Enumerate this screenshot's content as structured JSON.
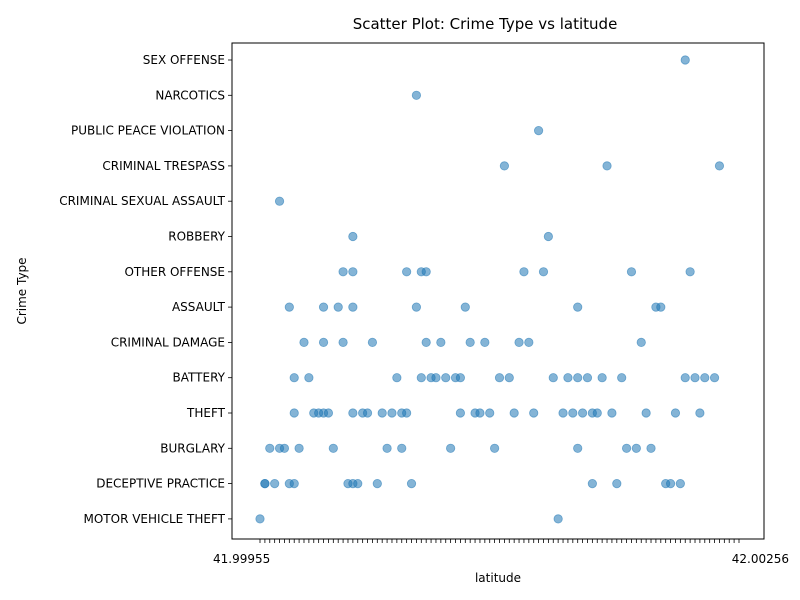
{
  "chart_data": {
    "type": "scatter",
    "title": "Scatter Plot: Crime Type vs latitude",
    "xlabel": "latitude",
    "ylabel": "Crime Type",
    "x_tick_text_left": "41.99955",
    "x_tick_text_right": "42.00256",
    "x_index_range": [
      0,
      98
    ],
    "categories": [
      "MOTOR VEHICLE THEFT",
      "DECEPTIVE PRACTICE",
      "BURGLARY",
      "THEFT",
      "BATTERY",
      "CRIMINAL DAMAGE",
      "ASSAULT",
      "OTHER OFFENSE",
      "ROBBERY",
      "CRIMINAL SEXUAL ASSAULT",
      "CRIMINAL TRESPASS",
      "PUBLIC PEACE VIOLATION",
      "NARCOTICS",
      "SEX OFFENSE"
    ],
    "marker_color": "#1f77b4",
    "marker_alpha": 0.55,
    "grid": false,
    "legend": "none",
    "points": [
      [
        0,
        "MOTOR VEHICLE THEFT"
      ],
      [
        1,
        "DECEPTIVE PRACTICE"
      ],
      [
        1,
        "DECEPTIVE PRACTICE"
      ],
      [
        2,
        "BURGLARY"
      ],
      [
        3,
        "DECEPTIVE PRACTICE"
      ],
      [
        4,
        "CRIMINAL SEXUAL ASSAULT"
      ],
      [
        4,
        "BURGLARY"
      ],
      [
        5,
        "BURGLARY"
      ],
      [
        6,
        "ASSAULT"
      ],
      [
        6,
        "DECEPTIVE PRACTICE"
      ],
      [
        7,
        "BATTERY"
      ],
      [
        7,
        "THEFT"
      ],
      [
        7,
        "DECEPTIVE PRACTICE"
      ],
      [
        8,
        "BURGLARY"
      ],
      [
        9,
        "CRIMINAL DAMAGE"
      ],
      [
        10,
        "BATTERY"
      ],
      [
        11,
        "THEFT"
      ],
      [
        12,
        "THEFT"
      ],
      [
        13,
        "ASSAULT"
      ],
      [
        13,
        "CRIMINAL DAMAGE"
      ],
      [
        13,
        "THEFT"
      ],
      [
        14,
        "THEFT"
      ],
      [
        15,
        "BURGLARY"
      ],
      [
        16,
        "ASSAULT"
      ],
      [
        17,
        "OTHER OFFENSE"
      ],
      [
        17,
        "CRIMINAL DAMAGE"
      ],
      [
        18,
        "DECEPTIVE PRACTICE"
      ],
      [
        19,
        "ROBBERY"
      ],
      [
        19,
        "OTHER OFFENSE"
      ],
      [
        19,
        "ASSAULT"
      ],
      [
        19,
        "THEFT"
      ],
      [
        19,
        "DECEPTIVE PRACTICE"
      ],
      [
        20,
        "DECEPTIVE PRACTICE"
      ],
      [
        21,
        "THEFT"
      ],
      [
        22,
        "THEFT"
      ],
      [
        23,
        "CRIMINAL DAMAGE"
      ],
      [
        24,
        "DECEPTIVE PRACTICE"
      ],
      [
        25,
        "THEFT"
      ],
      [
        26,
        "BURGLARY"
      ],
      [
        27,
        "THEFT"
      ],
      [
        28,
        "BATTERY"
      ],
      [
        29,
        "THEFT"
      ],
      [
        29,
        "BURGLARY"
      ],
      [
        30,
        "OTHER OFFENSE"
      ],
      [
        30,
        "THEFT"
      ],
      [
        31,
        "DECEPTIVE PRACTICE"
      ],
      [
        32,
        "ASSAULT"
      ],
      [
        32,
        "NARCOTICS"
      ],
      [
        33,
        "OTHER OFFENSE"
      ],
      [
        33,
        "BATTERY"
      ],
      [
        34,
        "OTHER OFFENSE"
      ],
      [
        34,
        "CRIMINAL DAMAGE"
      ],
      [
        35,
        "BATTERY"
      ],
      [
        36,
        "BATTERY"
      ],
      [
        37,
        "CRIMINAL DAMAGE"
      ],
      [
        38,
        "BATTERY"
      ],
      [
        39,
        "BURGLARY"
      ],
      [
        40,
        "BATTERY"
      ],
      [
        41,
        "BATTERY"
      ],
      [
        41,
        "THEFT"
      ],
      [
        42,
        "ASSAULT"
      ],
      [
        43,
        "CRIMINAL DAMAGE"
      ],
      [
        44,
        "THEFT"
      ],
      [
        45,
        "THEFT"
      ],
      [
        46,
        "CRIMINAL DAMAGE"
      ],
      [
        47,
        "THEFT"
      ],
      [
        48,
        "BURGLARY"
      ],
      [
        49,
        "BATTERY"
      ],
      [
        50,
        "CRIMINAL TRESPASS"
      ],
      [
        51,
        "BATTERY"
      ],
      [
        52,
        "THEFT"
      ],
      [
        53,
        "CRIMINAL DAMAGE"
      ],
      [
        54,
        "OTHER OFFENSE"
      ],
      [
        55,
        "CRIMINAL DAMAGE"
      ],
      [
        56,
        "THEFT"
      ],
      [
        57,
        "PUBLIC PEACE VIOLATION"
      ],
      [
        58,
        "OTHER OFFENSE"
      ],
      [
        59,
        "ROBBERY"
      ],
      [
        60,
        "BATTERY"
      ],
      [
        61,
        "MOTOR VEHICLE THEFT"
      ],
      [
        62,
        "THEFT"
      ],
      [
        63,
        "BATTERY"
      ],
      [
        64,
        "THEFT"
      ],
      [
        65,
        "ASSAULT"
      ],
      [
        65,
        "BATTERY"
      ],
      [
        65,
        "BURGLARY"
      ],
      [
        66,
        "THEFT"
      ],
      [
        67,
        "BATTERY"
      ],
      [
        68,
        "THEFT"
      ],
      [
        68,
        "DECEPTIVE PRACTICE"
      ],
      [
        69,
        "THEFT"
      ],
      [
        70,
        "BATTERY"
      ],
      [
        71,
        "CRIMINAL TRESPASS"
      ],
      [
        72,
        "THEFT"
      ],
      [
        73,
        "DECEPTIVE PRACTICE"
      ],
      [
        74,
        "BATTERY"
      ],
      [
        75,
        "BURGLARY"
      ],
      [
        76,
        "OTHER OFFENSE"
      ],
      [
        77,
        "BURGLARY"
      ],
      [
        78,
        "CRIMINAL DAMAGE"
      ],
      [
        79,
        "THEFT"
      ],
      [
        80,
        "BURGLARY"
      ],
      [
        81,
        "ASSAULT"
      ],
      [
        82,
        "ASSAULT"
      ],
      [
        83,
        "DECEPTIVE PRACTICE"
      ],
      [
        84,
        "DECEPTIVE PRACTICE"
      ],
      [
        85,
        "THEFT"
      ],
      [
        86,
        "DECEPTIVE PRACTICE"
      ],
      [
        87,
        "SEX OFFENSE"
      ],
      [
        87,
        "BATTERY"
      ],
      [
        88,
        "OTHER OFFENSE"
      ],
      [
        89,
        "BATTERY"
      ],
      [
        90,
        "THEFT"
      ],
      [
        91,
        "BATTERY"
      ],
      [
        93,
        "BATTERY"
      ],
      [
        94,
        "CRIMINAL TRESPASS"
      ]
    ]
  }
}
